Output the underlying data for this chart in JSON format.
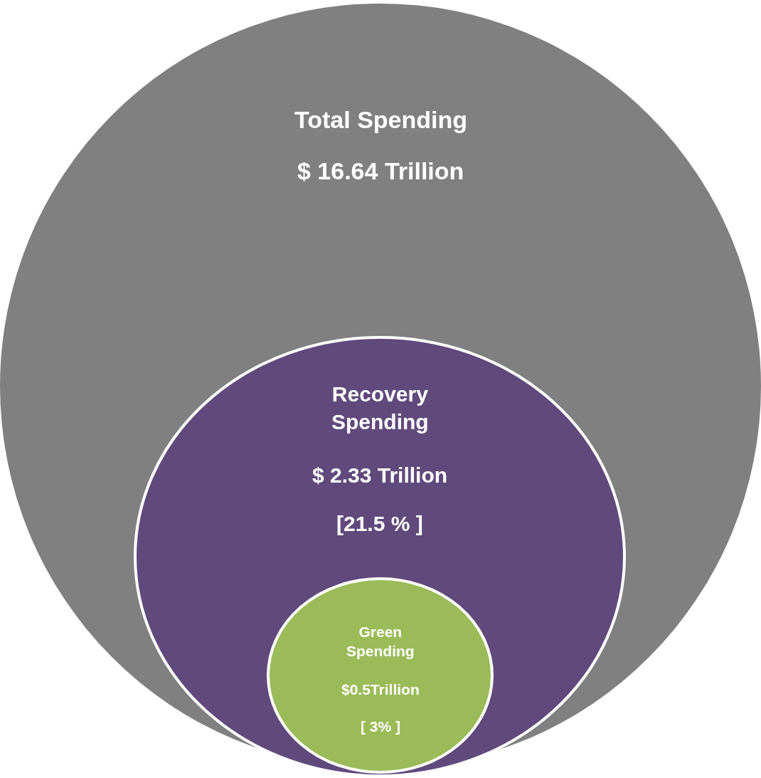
{
  "chart_data": {
    "type": "other",
    "categories": [
      "Total Spending",
      "Recovery Spending",
      "Green Spending"
    ],
    "values": [
      16.64,
      2.33,
      0.5
    ],
    "value_labels": [
      "$ 16.64 Trillion",
      "$ 2.33 Trillion",
      "$0.5Trillion"
    ],
    "colors": [
      "#808080",
      "#604a7b",
      "#9bbb59"
    ],
    "annotations": [
      "[21.5 % ]",
      "[ 3% ]"
    ]
  }
}
